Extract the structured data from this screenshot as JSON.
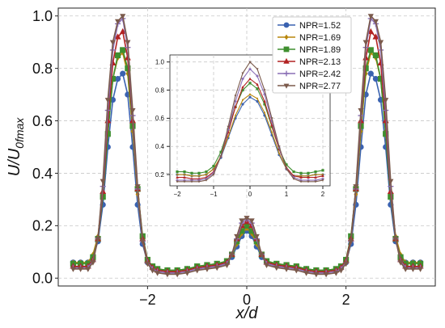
{
  "chart_data": {
    "type": "line",
    "xlabel": "x/d",
    "ylabel_main": "U/U",
    "ylabel_sub": "0fmax",
    "xlim": [
      -3.8,
      3.8
    ],
    "ylim": [
      -0.03,
      1.03
    ],
    "x_ticks": [
      -2,
      0,
      2
    ],
    "x_tick_labels": [
      "−2",
      "0",
      "2"
    ],
    "y_ticks": [
      0.0,
      0.2,
      0.4,
      0.6,
      0.8,
      1.0
    ],
    "y_tick_labels": [
      "0.0",
      "0.2",
      "0.4",
      "0.6",
      "0.8",
      "1.0"
    ],
    "grid": true,
    "legend_position": "top-right",
    "x": [
      -3.5,
      -3.35,
      -3.2,
      -3.1,
      -3.0,
      -2.9,
      -2.8,
      -2.7,
      -2.6,
      -2.5,
      -2.4,
      -2.3,
      -2.2,
      -2.1,
      -2.0,
      -1.9,
      -1.8,
      -1.6,
      -1.4,
      -1.2,
      -1.0,
      -0.8,
      -0.6,
      -0.4,
      -0.3,
      -0.2,
      -0.1,
      0.0,
      0.1,
      0.2,
      0.3,
      0.4,
      0.6,
      0.8,
      1.0,
      1.2,
      1.4,
      1.6,
      1.8,
      1.9,
      2.0,
      2.1,
      2.2,
      2.3,
      2.4,
      2.5,
      2.6,
      2.7,
      2.8,
      2.9,
      3.0,
      3.1,
      3.2,
      3.35,
      3.5
    ],
    "series": [
      {
        "name": "NPR=1.52",
        "color": "#3a62b0",
        "marker": "circle",
        "values": [
          0.06,
          0.06,
          0.06,
          0.08,
          0.14,
          0.28,
          0.5,
          0.68,
          0.76,
          0.78,
          0.7,
          0.5,
          0.28,
          0.13,
          0.06,
          0.04,
          0.03,
          0.03,
          0.03,
          0.035,
          0.04,
          0.045,
          0.05,
          0.06,
          0.08,
          0.12,
          0.16,
          0.18,
          0.16,
          0.12,
          0.08,
          0.06,
          0.05,
          0.045,
          0.04,
          0.035,
          0.03,
          0.03,
          0.03,
          0.04,
          0.06,
          0.13,
          0.28,
          0.5,
          0.7,
          0.78,
          0.76,
          0.68,
          0.5,
          0.28,
          0.14,
          0.08,
          0.06,
          0.06,
          0.06
        ]
      },
      {
        "name": "NPR=1.69",
        "color": "#b8860b",
        "marker": "diamond",
        "values": [
          0.06,
          0.06,
          0.06,
          0.09,
          0.16,
          0.32,
          0.56,
          0.76,
          0.84,
          0.86,
          0.78,
          0.56,
          0.32,
          0.15,
          0.07,
          0.045,
          0.035,
          0.03,
          0.03,
          0.035,
          0.045,
          0.05,
          0.055,
          0.065,
          0.09,
          0.13,
          0.17,
          0.19,
          0.17,
          0.13,
          0.09,
          0.065,
          0.055,
          0.05,
          0.045,
          0.035,
          0.03,
          0.03,
          0.035,
          0.045,
          0.07,
          0.15,
          0.32,
          0.56,
          0.78,
          0.86,
          0.84,
          0.76,
          0.56,
          0.32,
          0.16,
          0.09,
          0.06,
          0.06,
          0.06
        ]
      },
      {
        "name": "NPR=1.89",
        "color": "#3f8f2f",
        "marker": "square",
        "values": [
          0.055,
          0.055,
          0.055,
          0.08,
          0.15,
          0.31,
          0.55,
          0.76,
          0.85,
          0.87,
          0.8,
          0.58,
          0.34,
          0.16,
          0.07,
          0.045,
          0.035,
          0.03,
          0.03,
          0.035,
          0.045,
          0.05,
          0.055,
          0.065,
          0.09,
          0.14,
          0.18,
          0.2,
          0.18,
          0.14,
          0.09,
          0.065,
          0.055,
          0.05,
          0.045,
          0.035,
          0.03,
          0.03,
          0.035,
          0.045,
          0.07,
          0.16,
          0.34,
          0.58,
          0.8,
          0.87,
          0.85,
          0.76,
          0.55,
          0.31,
          0.15,
          0.08,
          0.055,
          0.055,
          0.055
        ]
      },
      {
        "name": "NPR=2.13",
        "color": "#b22222",
        "marker": "triangle",
        "values": [
          0.045,
          0.045,
          0.045,
          0.07,
          0.15,
          0.33,
          0.6,
          0.82,
          0.92,
          0.94,
          0.84,
          0.6,
          0.34,
          0.15,
          0.065,
          0.04,
          0.03,
          0.025,
          0.025,
          0.03,
          0.04,
          0.045,
          0.05,
          0.06,
          0.09,
          0.15,
          0.2,
          0.215,
          0.2,
          0.15,
          0.09,
          0.06,
          0.05,
          0.045,
          0.04,
          0.03,
          0.025,
          0.025,
          0.03,
          0.04,
          0.065,
          0.15,
          0.34,
          0.6,
          0.84,
          0.94,
          0.92,
          0.82,
          0.6,
          0.33,
          0.15,
          0.07,
          0.045,
          0.045,
          0.045
        ]
      },
      {
        "name": "NPR=2.42",
        "color": "#8a6fb5",
        "marker": "plus",
        "values": [
          0.04,
          0.04,
          0.04,
          0.065,
          0.15,
          0.35,
          0.64,
          0.87,
          0.97,
          0.99,
          0.88,
          0.62,
          0.34,
          0.14,
          0.06,
          0.035,
          0.025,
          0.02,
          0.02,
          0.025,
          0.035,
          0.04,
          0.045,
          0.055,
          0.09,
          0.15,
          0.21,
          0.225,
          0.21,
          0.15,
          0.09,
          0.055,
          0.045,
          0.04,
          0.035,
          0.025,
          0.02,
          0.02,
          0.025,
          0.035,
          0.06,
          0.14,
          0.34,
          0.62,
          0.88,
          0.99,
          0.97,
          0.87,
          0.64,
          0.35,
          0.15,
          0.065,
          0.04,
          0.04,
          0.04
        ]
      },
      {
        "name": "NPR=2.77",
        "color": "#7b5a4c",
        "marker": "star",
        "values": [
          0.035,
          0.035,
          0.035,
          0.06,
          0.15,
          0.37,
          0.68,
          0.9,
          0.98,
          1.0,
          0.9,
          0.64,
          0.35,
          0.14,
          0.055,
          0.03,
          0.02,
          0.015,
          0.015,
          0.02,
          0.03,
          0.035,
          0.04,
          0.05,
          0.09,
          0.16,
          0.22,
          0.23,
          0.22,
          0.16,
          0.09,
          0.05,
          0.04,
          0.035,
          0.03,
          0.02,
          0.015,
          0.015,
          0.02,
          0.03,
          0.055,
          0.14,
          0.35,
          0.64,
          0.9,
          1.0,
          0.98,
          0.9,
          0.68,
          0.37,
          0.15,
          0.06,
          0.035,
          0.035,
          0.035
        ]
      }
    ],
    "inset": {
      "type": "line",
      "xlim": [
        -2.2,
        2.2
      ],
      "ylim": [
        0.12,
        1.05
      ],
      "x_ticks": [
        -2,
        -1,
        0,
        1,
        2
      ],
      "x_tick_labels": [
        "−2",
        "−1",
        "0",
        "1",
        "2"
      ],
      "y_ticks": [
        0.2,
        0.4,
        0.6,
        0.8,
        1.0
      ],
      "y_tick_labels": [
        "0.2",
        "0.4",
        "0.6",
        "0.8",
        "1.0"
      ],
      "grid": true,
      "x": [
        -2.0,
        -1.8,
        -1.6,
        -1.4,
        -1.2,
        -1.0,
        -0.8,
        -0.6,
        -0.4,
        -0.2,
        0.0,
        0.2,
        0.4,
        0.6,
        0.8,
        1.0,
        1.2,
        1.4,
        1.6,
        1.8,
        2.0
      ],
      "series": [
        {
          "color": "#3a62b0",
          "values": [
            0.2,
            0.2,
            0.19,
            0.19,
            0.2,
            0.24,
            0.32,
            0.46,
            0.6,
            0.7,
            0.75,
            0.72,
            0.62,
            0.48,
            0.34,
            0.24,
            0.19,
            0.19,
            0.19,
            0.2,
            0.2
          ]
        },
        {
          "color": "#b8860b",
          "values": [
            0.2,
            0.2,
            0.19,
            0.19,
            0.2,
            0.24,
            0.33,
            0.47,
            0.62,
            0.73,
            0.77,
            0.74,
            0.64,
            0.5,
            0.35,
            0.24,
            0.19,
            0.19,
            0.19,
            0.2,
            0.2
          ]
        },
        {
          "color": "#3f8f2f",
          "values": [
            0.22,
            0.22,
            0.21,
            0.21,
            0.22,
            0.26,
            0.36,
            0.52,
            0.68,
            0.8,
            0.85,
            0.81,
            0.7,
            0.54,
            0.38,
            0.27,
            0.22,
            0.21,
            0.21,
            0.22,
            0.23
          ]
        },
        {
          "color": "#b22222",
          "values": [
            0.18,
            0.18,
            0.17,
            0.17,
            0.18,
            0.22,
            0.33,
            0.5,
            0.68,
            0.82,
            0.88,
            0.84,
            0.72,
            0.55,
            0.38,
            0.25,
            0.19,
            0.18,
            0.18,
            0.18,
            0.19
          ]
        },
        {
          "color": "#8a6fb5",
          "values": [
            0.16,
            0.16,
            0.16,
            0.16,
            0.17,
            0.21,
            0.33,
            0.52,
            0.72,
            0.88,
            0.95,
            0.9,
            0.77,
            0.58,
            0.39,
            0.24,
            0.18,
            0.16,
            0.16,
            0.16,
            0.17
          ]
        },
        {
          "color": "#7b5a4c",
          "values": [
            0.15,
            0.15,
            0.15,
            0.15,
            0.16,
            0.2,
            0.33,
            0.54,
            0.76,
            0.92,
            1.0,
            0.95,
            0.8,
            0.6,
            0.4,
            0.24,
            0.17,
            0.15,
            0.15,
            0.15,
            0.16
          ]
        }
      ]
    }
  }
}
